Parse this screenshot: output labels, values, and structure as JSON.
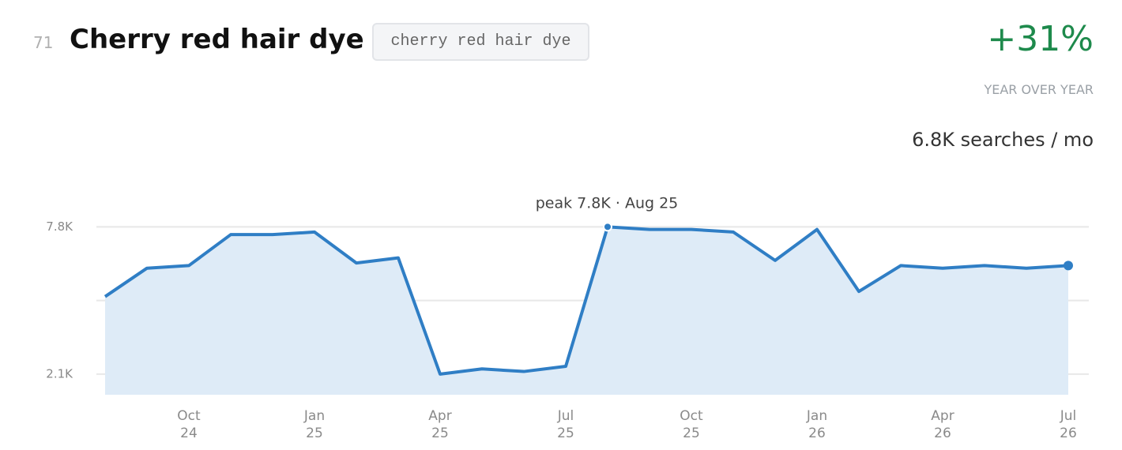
{
  "header": {
    "rank": "71",
    "title": "Cherry red hair dye",
    "tag": "cherry red hair dye",
    "change": "+31%",
    "change_label": "YEAR OVER YEAR",
    "volume": "6.8K searches / mo"
  },
  "chart_data": {
    "type": "line",
    "annotation": "peak 7.8K · Aug 25",
    "color": "#2f7ec5",
    "area_color": "#deebf7",
    "categories": [
      null,
      null,
      "Oct 24",
      null,
      null,
      "Jan 25",
      null,
      null,
      "Apr 25",
      null,
      null,
      "Jul 25",
      null,
      null,
      "Oct 25",
      null,
      null,
      "Jan 26",
      null,
      null,
      "Apr 26",
      null,
      null,
      "Jul 26"
    ],
    "values": [
      5.1,
      6.2,
      6.3,
      7.5,
      7.5,
      7.6,
      6.4,
      6.6,
      2.1,
      2.3,
      2.2,
      2.4,
      7.8,
      7.7,
      7.7,
      7.6,
      6.5,
      7.7,
      5.3,
      6.3,
      6.2,
      6.3,
      6.2,
      6.3
    ],
    "ylim": [
      1.3,
      8.3
    ],
    "yticks": [
      {
        "value": 2.1,
        "label": "2.1K"
      },
      {
        "value": 4.95,
        "label": null
      },
      {
        "value": 7.8,
        "label": "7.8K"
      }
    ],
    "grid": true
  }
}
